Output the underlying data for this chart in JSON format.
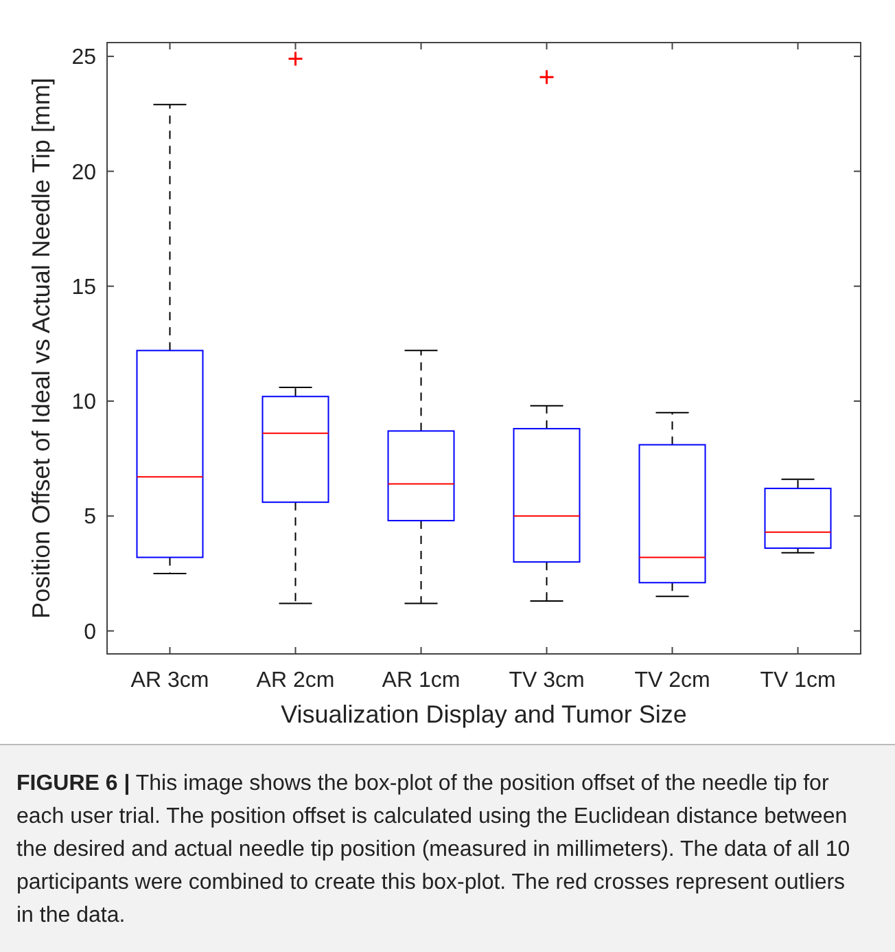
{
  "chart_data": {
    "type": "box",
    "xlabel": "Visualization Display and Tumor Size",
    "ylabel": "Position Offset of Ideal vs Actual Needle Tip [mm]",
    "categories": [
      "AR 3cm",
      "AR 2cm",
      "AR 1cm",
      "TV 3cm",
      "TV 2cm",
      "TV 1cm"
    ],
    "color": "#0000ff",
    "boxes": [
      {
        "low": 2.5,
        "q1": 3.2,
        "median": 6.7,
        "q3": 12.2,
        "high": 22.9
      },
      {
        "low": 1.2,
        "q1": 5.6,
        "median": 8.6,
        "q3": 10.2,
        "high": 10.6,
        "outliers": [
          24.9
        ]
      },
      {
        "low": 1.2,
        "q1": 4.8,
        "median": 6.4,
        "q3": 8.7,
        "high": 12.2
      },
      {
        "low": 1.3,
        "q1": 3.0,
        "median": 5.0,
        "q3": 8.8,
        "high": 9.8,
        "outliers": [
          24.1
        ]
      },
      {
        "low": 1.5,
        "q1": 2.1,
        "median": 3.2,
        "q3": 8.1,
        "high": 9.5
      },
      {
        "low": 3.4,
        "q1": 3.6,
        "median": 4.3,
        "q3": 6.2,
        "high": 6.6
      }
    ],
    "ylim": [
      -1,
      25.6
    ],
    "yticks": [
      0,
      5,
      10,
      15,
      20,
      25
    ],
    "grid": false,
    "marker": "cross",
    "annotations": [
      "FIGURE 6 | This image shows the box-plot of the position offset of the needle tip for each user trial. The position offset is calculated using the Euclidean distance between the desired and actual needle tip position (measured in millimeters). The data of all 10 participants were combined to create this box-plot. The red crosses represent outliers in the data."
    ]
  }
}
